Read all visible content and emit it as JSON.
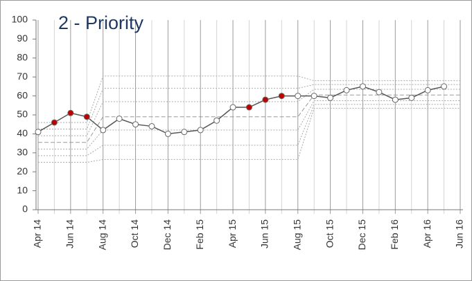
{
  "chart_data": {
    "type": "line",
    "title": "2 - Priority",
    "categories": [
      "Apr 14",
      null,
      "Jun 14",
      null,
      "Aug 14",
      null,
      "Oct 14",
      null,
      "Dec 14",
      null,
      "Feb 15",
      null,
      "Apr 15",
      null,
      "Jun 15",
      null,
      "Aug 15",
      null,
      "Oct 15",
      null,
      "Dec 15",
      null,
      "Feb 16",
      null,
      "Apr 16",
      null,
      "Jun 16"
    ],
    "values": [
      41,
      46,
      51,
      49,
      42,
      48,
      45,
      44,
      40,
      41,
      42,
      47,
      54,
      54,
      58,
      60,
      60,
      60,
      59,
      63,
      65,
      62,
      58,
      59,
      63,
      65,
      null
    ],
    "point_colors": [
      "#ffffff",
      "#c00000",
      "#c00000",
      "#c00000",
      "#ffffff",
      "#ffffff",
      "#ffffff",
      "#ffffff",
      "#ffffff",
      "#ffffff",
      "#ffffff",
      "#ffffff",
      "#ffffff",
      "#c00000",
      "#c00000",
      "#c00000",
      "#ffffff",
      "#ffffff",
      "#ffffff",
      "#ffffff",
      "#ffffff",
      "#ffffff",
      "#ffffff",
      "#ffffff",
      "#ffffff",
      "#ffffff",
      null
    ],
    "color": "#555555",
    "limit_phases": [
      {
        "from": 0,
        "to": 3,
        "values": [
          46,
          42.5,
          39,
          35.5,
          32,
          28.5,
          25
        ]
      },
      {
        "from": 4,
        "to": 16,
        "values": [
          70.5,
          64,
          57,
          49,
          42,
          34,
          26.5
        ]
      },
      {
        "from": 17,
        "to": 26,
        "values": [
          68,
          66,
          63.5,
          60.5,
          57.5,
          55.5,
          53.5
        ]
      }
    ],
    "ylim": [
      0,
      100
    ],
    "yticks": [
      0,
      10,
      20,
      30,
      40,
      50,
      60,
      70,
      80,
      90,
      100
    ]
  }
}
